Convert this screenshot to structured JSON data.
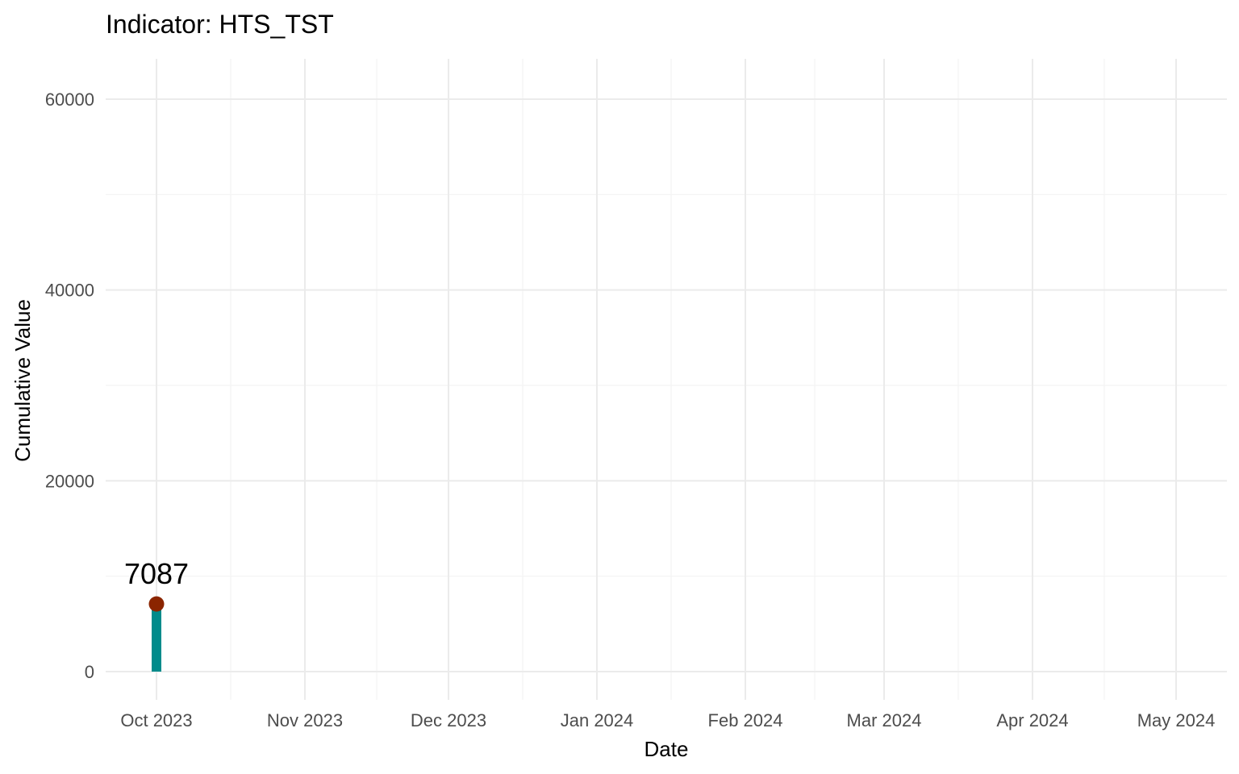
{
  "chart_data": {
    "type": "bar",
    "title": "Indicator: HTS_TST",
    "xlabel": "Date",
    "ylabel": "Cumulative Value",
    "x_ticks": [
      "Oct 2023",
      "Nov 2023",
      "Dec 2023",
      "Jan 2024",
      "Feb 2024",
      "Mar 2024",
      "Apr 2024",
      "May 2024"
    ],
    "y_ticks": [
      0,
      20000,
      40000,
      60000
    ],
    "ylim": [
      0,
      60000
    ],
    "grid": true,
    "points": [
      {
        "x": "Oct 2023",
        "value": 7087,
        "label": "7087"
      }
    ],
    "colors": {
      "bar": "#008b8b",
      "point": "#8b2500"
    }
  }
}
